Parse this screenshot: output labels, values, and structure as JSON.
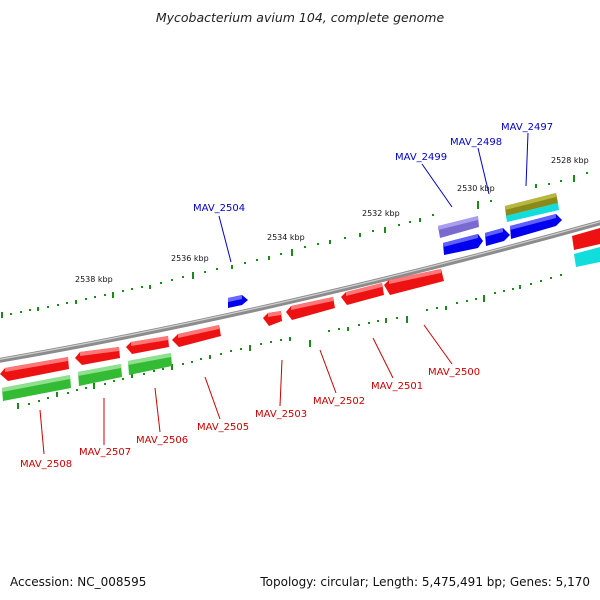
{
  "header": {
    "title": "Mycobacterium avium 104, complete genome"
  },
  "footer": {
    "accession": "Accession: NC_008595",
    "summary": "Topology: circular; Length: 5,475,491 bp; Genes: 5,170"
  },
  "colors": {
    "backbone": "#8c8c8c",
    "tick": "#1a8a1a",
    "forward_label": "#0000cc",
    "reverse_label": "#cc0000",
    "gene_blue": "#0000ee",
    "gene_red": "#ee1111",
    "gene_green": "#33bb33",
    "gene_cyan": "#11dddd",
    "gene_olive": "#8a8a1a",
    "gene_purple": "#7a6ad0"
  },
  "scale_labels": [
    {
      "text": "2538 kbp"
    },
    {
      "text": "2536 kbp"
    },
    {
      "text": "2534 kbp"
    },
    {
      "text": "2532 kbp"
    },
    {
      "text": "2530 kbp"
    },
    {
      "text": "2528 kbp"
    }
  ],
  "forward_labels": [
    {
      "text": "MAV_2504"
    },
    {
      "text": "MAV_2499"
    },
    {
      "text": "MAV_2498"
    },
    {
      "text": "MAV_2497"
    }
  ],
  "reverse_labels": [
    {
      "text": "MAV_2508"
    },
    {
      "text": "MAV_2507"
    },
    {
      "text": "MAV_2506"
    },
    {
      "text": "MAV_2505"
    },
    {
      "text": "MAV_2503"
    },
    {
      "text": "MAV_2502"
    },
    {
      "text": "MAV_2501"
    },
    {
      "text": "MAV_2500"
    }
  ]
}
